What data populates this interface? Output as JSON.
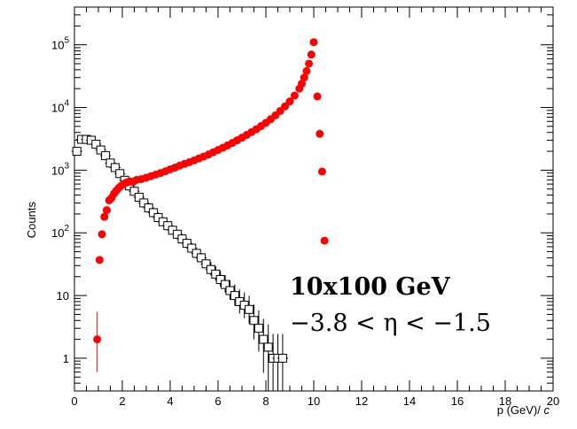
{
  "chart_data": {
    "type": "scatter",
    "xlabel": "p (GeV)/ c",
    "ylabel": "Counts",
    "xlim": [
      0,
      20
    ],
    "ylim": [
      0.3,
      400000
    ],
    "yscale": "log",
    "grid": false,
    "x_ticks": [
      "0",
      "2",
      "4",
      "6",
      "8",
      "10",
      "12",
      "14",
      "16",
      "18",
      "20"
    ],
    "y_ticks": [
      {
        "value": 1,
        "label": "1"
      },
      {
        "value": 10,
        "label": "10"
      },
      {
        "value": 100,
        "label": "10^2"
      },
      {
        "value": 1000,
        "label": "10^3"
      },
      {
        "value": 10000,
        "label": "10^4"
      },
      {
        "value": 100000,
        "label": "10^5"
      }
    ],
    "annotations": [
      "10x100 GeV",
      "−3.8 < η < −1.5"
    ],
    "series": [
      {
        "marker": "filled-circle",
        "color": "#ff0000",
        "x": [
          0.95,
          1.05,
          1.15,
          1.25,
          1.35,
          1.45,
          1.55,
          1.65,
          1.75,
          1.85,
          1.95,
          2.05,
          2.15,
          2.25,
          2.35,
          2.45,
          2.6,
          2.8,
          3.0,
          3.2,
          3.4,
          3.6,
          3.8,
          4.0,
          4.2,
          4.4,
          4.6,
          4.8,
          5.0,
          5.2,
          5.4,
          5.6,
          5.8,
          6.0,
          6.2,
          6.4,
          6.6,
          6.8,
          7.0,
          7.2,
          7.4,
          7.6,
          7.8,
          8.0,
          8.2,
          8.4,
          8.6,
          8.8,
          9.0,
          9.2,
          9.4,
          9.5,
          9.6,
          9.7,
          9.8,
          9.9,
          10.0,
          10.15,
          10.25,
          10.35,
          10.45
        ],
        "y": [
          2,
          37,
          95,
          180,
          230,
          330,
          360,
          420,
          470,
          520,
          560,
          600,
          630,
          650,
          660,
          650,
          700,
          720,
          760,
          800,
          850,
          900,
          960,
          1030,
          1100,
          1180,
          1260,
          1340,
          1430,
          1540,
          1650,
          1780,
          1930,
          2100,
          2280,
          2480,
          2720,
          3000,
          3300,
          3650,
          4050,
          4500,
          5050,
          5700,
          6500,
          7500,
          8800,
          10400,
          12500,
          15500,
          20000,
          24000,
          30000,
          38000,
          50000,
          70000,
          110000,
          15000,
          3800,
          950,
          75
        ],
        "yerr_low": [
          1.4
        ],
        "yerr_high": [
          3.5
        ]
      },
      {
        "marker": "open-square",
        "color": "#000000",
        "x": [
          0.1,
          0.3,
          0.5,
          0.7,
          0.9,
          1.1,
          1.3,
          1.5,
          1.7,
          1.9,
          2.1,
          2.3,
          2.5,
          2.7,
          2.9,
          3.1,
          3.3,
          3.5,
          3.7,
          3.9,
          4.1,
          4.3,
          4.5,
          4.7,
          4.9,
          5.1,
          5.3,
          5.5,
          5.7,
          5.9,
          6.1,
          6.3,
          6.5,
          6.7,
          6.9,
          7.1,
          7.3,
          7.5,
          7.7,
          7.9,
          8.1,
          8.3,
          8.5,
          8.7
        ],
        "y": [
          2000,
          3100,
          3100,
          3000,
          2600,
          2100,
          1700,
          1300,
          1100,
          880,
          690,
          560,
          460,
          370,
          300,
          250,
          210,
          175,
          150,
          130,
          110,
          95,
          80,
          68,
          57,
          47,
          40,
          32,
          26,
          22,
          18,
          15,
          12,
          10,
          8,
          7,
          6,
          4,
          3,
          2,
          1.5,
          1.0,
          1.0,
          1.0
        ]
      }
    ]
  }
}
